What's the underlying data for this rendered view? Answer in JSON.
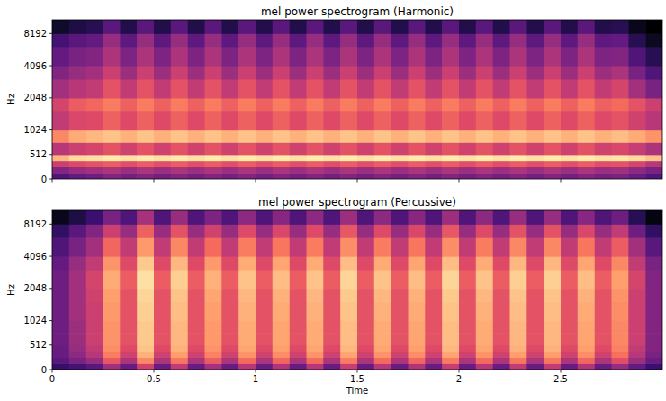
{
  "chart_data": [
    {
      "type": "heatmap",
      "title": "mel power spectrogram (Harmonic)",
      "y_label": "Hz",
      "xlim": [
        0,
        3
      ],
      "ylim": [
        0,
        11025
      ],
      "xticks": [
        0,
        0.5,
        1,
        1.5,
        2,
        2.5
      ],
      "yticks": [
        0,
        512,
        1024,
        2048,
        4096,
        8192
      ],
      "tick_labels": "y",
      "zlim": [
        -80,
        0
      ],
      "x_edges": [
        0,
        0.083,
        0.167,
        0.25,
        0.333,
        0.417,
        0.5,
        0.583,
        0.667,
        0.75,
        0.833,
        0.917,
        1,
        1.083,
        1.167,
        1.25,
        1.333,
        1.417,
        1.5,
        1.583,
        1.667,
        1.75,
        1.833,
        1.917,
        2,
        2.083,
        2.167,
        2.25,
        2.333,
        2.417,
        2.5,
        2.583,
        2.667,
        2.75,
        2.833,
        2.917,
        3
      ],
      "y_edges": [
        0,
        128,
        256,
        384,
        512,
        768,
        1024,
        1536,
        2048,
        3072,
        4096,
        6144,
        8192,
        11025
      ],
      "cells": [
        [
          -60,
          -56,
          -54,
          -50,
          -53,
          -50,
          -53,
          -50,
          -53,
          -50,
          -53,
          -50,
          -53,
          -50,
          -53,
          -50,
          -53,
          -50,
          -53,
          -50,
          -53,
          -50,
          -53,
          -50,
          -53,
          -50,
          -53,
          -50,
          -53,
          -50,
          -53,
          -50,
          -53,
          -52,
          -55,
          -60
        ],
        [
          -50,
          -46,
          -44,
          -42,
          -45,
          -42,
          -45,
          -42,
          -45,
          -42,
          -45,
          -42,
          -45,
          -42,
          -45,
          -42,
          -45,
          -42,
          -45,
          -42,
          -45,
          -42,
          -45,
          -42,
          -45,
          -42,
          -45,
          -42,
          -45,
          -42,
          -45,
          -42,
          -45,
          -44,
          -48,
          -52
        ],
        [
          -36,
          -32,
          -30,
          -28,
          -31,
          -28,
          -31,
          -28,
          -31,
          -28,
          -31,
          -28,
          -31,
          -28,
          -31,
          -28,
          -31,
          -28,
          -31,
          -28,
          -31,
          -28,
          -31,
          -28,
          -31,
          -28,
          -31,
          -28,
          -31,
          -28,
          -31,
          -28,
          -31,
          -30,
          -34,
          -40
        ],
        [
          -12,
          -6,
          -5,
          -3,
          -5,
          -3,
          -5,
          -3,
          -5,
          -3,
          -5,
          -3,
          -5,
          -3,
          -5,
          -3,
          -5,
          -3,
          -5,
          -3,
          -5,
          -3,
          -5,
          -3,
          -5,
          -3,
          -5,
          -3,
          -5,
          -3,
          -5,
          -3,
          -5,
          -4,
          -6,
          -10
        ],
        [
          -40,
          -36,
          -34,
          -30,
          -35,
          -30,
          -35,
          -30,
          -35,
          -30,
          -35,
          -30,
          -35,
          -30,
          -35,
          -30,
          -35,
          -30,
          -35,
          -30,
          -35,
          -30,
          -35,
          -30,
          -35,
          -30,
          -35,
          -30,
          -35,
          -30,
          -35,
          -30,
          -35,
          -33,
          -37,
          -42
        ],
        [
          -20,
          -14,
          -12,
          -10,
          -13,
          -10,
          -13,
          -10,
          -13,
          -10,
          -13,
          -10,
          -13,
          -10,
          -13,
          -10,
          -13,
          -10,
          -13,
          -10,
          -13,
          -10,
          -13,
          -10,
          -13,
          -10,
          -13,
          -10,
          -13,
          -10,
          -13,
          -10,
          -13,
          -11,
          -14,
          -18
        ],
        [
          -38,
          -33,
          -32,
          -27,
          -32,
          -27,
          -32,
          -27,
          -32,
          -27,
          -32,
          -27,
          -32,
          -27,
          -32,
          -27,
          -32,
          -27,
          -32,
          -27,
          -32,
          -27,
          -32,
          -27,
          -32,
          -27,
          -32,
          -27,
          -32,
          -27,
          -32,
          -27,
          -32,
          -30,
          -35,
          -40
        ],
        [
          -34,
          -28,
          -26,
          -22,
          -27,
          -22,
          -27,
          -22,
          -27,
          -22,
          -27,
          -22,
          -27,
          -22,
          -27,
          -22,
          -27,
          -22,
          -27,
          -22,
          -27,
          -22,
          -27,
          -22,
          -27,
          -22,
          -27,
          -22,
          -27,
          -22,
          -27,
          -22,
          -27,
          -25,
          -30,
          -36
        ],
        [
          -44,
          -40,
          -38,
          -30,
          -38,
          -30,
          -38,
          -30,
          -38,
          -30,
          -38,
          -30,
          -38,
          -30,
          -38,
          -30,
          -38,
          -30,
          -38,
          -30,
          -38,
          -30,
          -38,
          -30,
          -38,
          -30,
          -38,
          -30,
          -38,
          -30,
          -38,
          -30,
          -38,
          -34,
          -44,
          -52
        ],
        [
          -50,
          -46,
          -44,
          -36,
          -45,
          -36,
          -45,
          -36,
          -45,
          -36,
          -45,
          -36,
          -45,
          -36,
          -45,
          -36,
          -45,
          -36,
          -45,
          -36,
          -45,
          -36,
          -45,
          -36,
          -45,
          -36,
          -45,
          -36,
          -45,
          -36,
          -45,
          -36,
          -45,
          -42,
          -52,
          -60
        ],
        [
          -56,
          -52,
          -50,
          -42,
          -51,
          -42,
          -51,
          -42,
          -51,
          -42,
          -51,
          -42,
          -51,
          -42,
          -51,
          -42,
          -51,
          -42,
          -51,
          -42,
          -51,
          -42,
          -51,
          -42,
          -51,
          -42,
          -51,
          -42,
          -51,
          -42,
          -51,
          -42,
          -51,
          -50,
          -60,
          -68
        ],
        [
          -62,
          -58,
          -56,
          -46,
          -57,
          -46,
          -57,
          -46,
          -57,
          -46,
          -57,
          -46,
          -57,
          -46,
          -57,
          -46,
          -57,
          -46,
          -57,
          -46,
          -57,
          -46,
          -57,
          -46,
          -57,
          -46,
          -57,
          -46,
          -57,
          -46,
          -57,
          -46,
          -57,
          -56,
          -68,
          -75
        ],
        [
          -74,
          -70,
          -68,
          -58,
          -69,
          -58,
          -69,
          -58,
          -69,
          -58,
          -69,
          -58,
          -69,
          -58,
          -69,
          -58,
          -69,
          -58,
          -69,
          -58,
          -69,
          -58,
          -69,
          -58,
          -69,
          -58,
          -69,
          -58,
          -69,
          -58,
          -69,
          -58,
          -69,
          -68,
          -76,
          -80
        ]
      ]
    },
    {
      "type": "heatmap",
      "title": "mel power spectrogram (Percussive)",
      "y_label": "Hz",
      "x_label": "Time",
      "xlim": [
        0,
        3
      ],
      "ylim": [
        0,
        11025
      ],
      "xticks": [
        0,
        0.5,
        1,
        1.5,
        2,
        2.5
      ],
      "yticks": [
        0,
        512,
        1024,
        2048,
        4096,
        8192
      ],
      "zlim": [
        -80,
        0
      ],
      "x_edges": [
        0,
        0.083,
        0.167,
        0.25,
        0.333,
        0.417,
        0.5,
        0.583,
        0.667,
        0.75,
        0.833,
        0.917,
        1,
        1.083,
        1.167,
        1.25,
        1.333,
        1.417,
        1.5,
        1.583,
        1.667,
        1.75,
        1.833,
        1.917,
        2,
        2.083,
        2.167,
        2.25,
        2.333,
        2.417,
        2.5,
        2.583,
        2.667,
        2.75,
        2.833,
        2.917,
        3
      ],
      "y_edges": [
        0,
        128,
        256,
        384,
        512,
        768,
        1024,
        1536,
        2048,
        3072,
        4096,
        6144,
        8192,
        11025
      ],
      "cells": [
        [
          -65,
          -62,
          -58,
          -44,
          -55,
          -35,
          -55,
          -38,
          -55,
          -43,
          -55,
          -40,
          -55,
          -41,
          -55,
          -40,
          -55,
          -37,
          -55,
          -40,
          -55,
          -41,
          -55,
          -37,
          -55,
          -40,
          -55,
          -38,
          -55,
          -38,
          -55,
          -41,
          -55,
          -46,
          -56,
          -64
        ],
        [
          -58,
          -52,
          -46,
          -29,
          -42,
          -20,
          -42,
          -23,
          -42,
          -28,
          -42,
          -25,
          -42,
          -26,
          -42,
          -25,
          -42,
          -22,
          -42,
          -25,
          -42,
          -26,
          -42,
          -22,
          -42,
          -25,
          -42,
          -23,
          -42,
          -23,
          -42,
          -26,
          -42,
          -31,
          -45,
          -55
        ],
        [
          -55,
          -48,
          -40,
          -22,
          -35,
          -13,
          -35,
          -16,
          -35,
          -21,
          -35,
          -18,
          -35,
          -19,
          -35,
          -18,
          -35,
          -15,
          -35,
          -18,
          -35,
          -19,
          -35,
          -15,
          -35,
          -18,
          -35,
          -16,
          -35,
          -16,
          -35,
          -19,
          -35,
          -24,
          -40,
          -52
        ],
        [
          -55,
          -46,
          -38,
          -19,
          -32,
          -10,
          -32,
          -13,
          -32,
          -18,
          -32,
          -15,
          -32,
          -16,
          -32,
          -15,
          -32,
          -12,
          -32,
          -15,
          -32,
          -16,
          -32,
          -12,
          -32,
          -15,
          -32,
          -13,
          -32,
          -13,
          -32,
          -16,
          -32,
          -21,
          -38,
          -50
        ],
        [
          -54,
          -45,
          -36,
          -18,
          -30,
          -9,
          -30,
          -12,
          -30,
          -17,
          -30,
          -14,
          -30,
          -15,
          -30,
          -14,
          -30,
          -11,
          -30,
          -14,
          -30,
          -15,
          -30,
          -11,
          -30,
          -14,
          -30,
          -12,
          -30,
          -12,
          -30,
          -15,
          -30,
          -20,
          -36,
          -50
        ],
        [
          -54,
          -45,
          -36,
          -18,
          -30,
          -9,
          -30,
          -12,
          -30,
          -17,
          -30,
          -14,
          -30,
          -15,
          -30,
          -14,
          -30,
          -11,
          -30,
          -14,
          -30,
          -15,
          -30,
          -11,
          -30,
          -14,
          -30,
          -12,
          -30,
          -12,
          -30,
          -15,
          -30,
          -20,
          -36,
          -50
        ],
        [
          -54,
          -44,
          -36,
          -17,
          -30,
          -8,
          -30,
          -11,
          -30,
          -16,
          -30,
          -13,
          -30,
          -14,
          -30,
          -13,
          -30,
          -10,
          -30,
          -13,
          -30,
          -14,
          -30,
          -10,
          -30,
          -13,
          -30,
          -11,
          -30,
          -11,
          -30,
          -14,
          -30,
          -19,
          -36,
          -50
        ],
        [
          -54,
          -44,
          -35,
          -16,
          -30,
          -7,
          -30,
          -10,
          -30,
          -15,
          -30,
          -12,
          -30,
          -13,
          -30,
          -12,
          -30,
          -9,
          -30,
          -12,
          -30,
          -13,
          -30,
          -9,
          -30,
          -12,
          -30,
          -10,
          -30,
          -10,
          -30,
          -13,
          -30,
          -18,
          -36,
          -50
        ],
        [
          -54,
          -44,
          -34,
          -14,
          -28,
          -5,
          -28,
          -8,
          -28,
          -13,
          -28,
          -10,
          -28,
          -11,
          -28,
          -10,
          -28,
          -7,
          -28,
          -10,
          -28,
          -11,
          -28,
          -7,
          -28,
          -10,
          -28,
          -8,
          -28,
          -8,
          -28,
          -11,
          -28,
          -16,
          -34,
          -50
        ],
        [
          -56,
          -46,
          -38,
          -18,
          -32,
          -9,
          -32,
          -12,
          -32,
          -17,
          -32,
          -14,
          -32,
          -15,
          -32,
          -14,
          -32,
          -11,
          -32,
          -14,
          -32,
          -15,
          -32,
          -11,
          -32,
          -14,
          -32,
          -12,
          -32,
          -12,
          -32,
          -15,
          -32,
          -20,
          -38,
          -52
        ],
        [
          -60,
          -52,
          -44,
          -26,
          -38,
          -17,
          -38,
          -20,
          -38,
          -25,
          -38,
          -22,
          -38,
          -23,
          -38,
          -22,
          -38,
          -19,
          -38,
          -22,
          -38,
          -23,
          -38,
          -19,
          -38,
          -22,
          -38,
          -20,
          -38,
          -20,
          -38,
          -23,
          -38,
          -28,
          -44,
          -58
        ],
        [
          -66,
          -58,
          -50,
          -36,
          -46,
          -27,
          -46,
          -30,
          -46,
          -35,
          -46,
          -32,
          -46,
          -33,
          -46,
          -32,
          -46,
          -29,
          -46,
          -32,
          -46,
          -33,
          -46,
          -29,
          -46,
          -32,
          -46,
          -30,
          -46,
          -30,
          -46,
          -33,
          -46,
          -38,
          -54,
          -66
        ],
        [
          -76,
          -70,
          -64,
          -52,
          -60,
          -43,
          -60,
          -46,
          -60,
          -51,
          -60,
          -48,
          -60,
          -49,
          -60,
          -48,
          -60,
          -45,
          -60,
          -48,
          -60,
          -49,
          -60,
          -45,
          -60,
          -48,
          -60,
          -46,
          -60,
          -46,
          -60,
          -49,
          -60,
          -54,
          -68,
          -78
        ]
      ]
    }
  ]
}
